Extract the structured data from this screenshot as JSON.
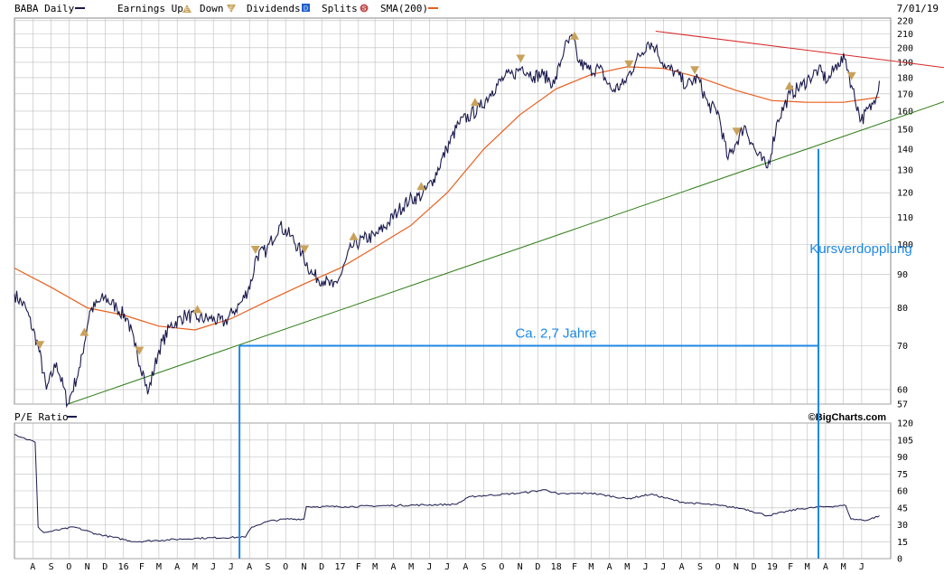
{
  "header": {
    "symbol_label": "BABA Daily",
    "earnings_up_label": "Earnings Up",
    "earnings_down_label": "Down",
    "dividends_label": "Dividends",
    "splits_label": "Splits",
    "sma_label": "SMA(200)",
    "date_label": "7/01/19",
    "icons": {
      "earnings_up": "E",
      "earnings_down": "E",
      "dividends": "D",
      "splits": "S"
    }
  },
  "pe_label": "P/E Ratio",
  "brand": "©BigCharts.com",
  "colors": {
    "price": "#1a1a4e",
    "sma": "#e85f1e",
    "resistance": "#d62728",
    "support": "#2e7d16",
    "annotation": "#1e88e5",
    "grid": "#bdbdbd",
    "earnings": "#c9a25a"
  },
  "chart_data": [
    {
      "type": "line",
      "title": "BABA Daily",
      "x_ticks": [
        "A",
        "S",
        "O",
        "N",
        "D",
        "16",
        "F",
        "M",
        "A",
        "M",
        "J",
        "J",
        "A",
        "S",
        "O",
        "N",
        "D",
        "17",
        "F",
        "M",
        "A",
        "M",
        "J",
        "J",
        "A",
        "S",
        "O",
        "N",
        "D",
        "18",
        "F",
        "M",
        "A",
        "M",
        "J",
        "J",
        "A",
        "S",
        "O",
        "N",
        "D",
        "19",
        "F",
        "M",
        "A",
        "M",
        "J"
      ],
      "y_scale": "log",
      "y_ticks": [
        57,
        60,
        70,
        80,
        90,
        100,
        110,
        120,
        130,
        140,
        150,
        160,
        170,
        180,
        190,
        200,
        210,
        220
      ],
      "ylim": [
        57,
        222
      ],
      "grid": true,
      "series": [
        {
          "name": "BABA Daily",
          "x": [
            "2015-07-01",
            "2015-07-20",
            "2015-08-10",
            "2015-08-24",
            "2015-09-10",
            "2015-09-29",
            "2015-10-20",
            "2015-11-05",
            "2015-11-30",
            "2015-12-21",
            "2016-01-08",
            "2016-01-20",
            "2016-02-05",
            "2016-02-11",
            "2016-03-01",
            "2016-03-20",
            "2016-04-15",
            "2016-05-06",
            "2016-05-27",
            "2016-06-20",
            "2016-07-05",
            "2016-07-20",
            "2016-08-05",
            "2016-08-12",
            "2016-08-30",
            "2016-09-20",
            "2016-10-10",
            "2016-10-28",
            "2016-11-15",
            "2016-12-05",
            "2016-12-20",
            "2017-01-03",
            "2017-01-20",
            "2017-02-10",
            "2017-03-01",
            "2017-03-24",
            "2017-04-10",
            "2017-04-28",
            "2017-05-20",
            "2017-06-08",
            "2017-06-30",
            "2017-07-20",
            "2017-08-10",
            "2017-08-25",
            "2017-09-15",
            "2017-10-05",
            "2017-10-20",
            "2017-11-05",
            "2017-11-24",
            "2017-12-10",
            "2017-12-29",
            "2018-01-15",
            "2018-01-29",
            "2018-02-08",
            "2018-02-26",
            "2018-03-15",
            "2018-04-05",
            "2018-04-25",
            "2018-05-15",
            "2018-06-05",
            "2018-06-18",
            "2018-07-05",
            "2018-07-20",
            "2018-08-10",
            "2018-08-28",
            "2018-09-15",
            "2018-10-01",
            "2018-10-18",
            "2018-10-30",
            "2018-11-15",
            "2018-12-05",
            "2018-12-24",
            "2019-01-10",
            "2019-01-31",
            "2019-02-20",
            "2019-03-05",
            "2019-03-20",
            "2019-04-05",
            "2019-04-22",
            "2019-05-05",
            "2019-05-15",
            "2019-05-31",
            "2019-06-20",
            "2019-07-01"
          ],
          "values": [
            84,
            80,
            70,
            60,
            66,
            57,
            65,
            79,
            83,
            80,
            77,
            70,
            63,
            59,
            69,
            75,
            78,
            77,
            77,
            76,
            79,
            82,
            88,
            96,
            98,
            107,
            103,
            97,
            90,
            88,
            86,
            90,
            99,
            102,
            103,
            108,
            113,
            117,
            119,
            126,
            140,
            153,
            158,
            162,
            172,
            180,
            182,
            187,
            181,
            182,
            176,
            200,
            207,
            190,
            185,
            186,
            172,
            176,
            190,
            204,
            200,
            186,
            184,
            175,
            180,
            163,
            160,
            135,
            142,
            152,
            138,
            131,
            155,
            170,
            175,
            180,
            185,
            178,
            190,
            192,
            175,
            155,
            164,
            178
          ]
        },
        {
          "name": "SMA(200)",
          "x": [
            "2015-07-01",
            "2015-09-01",
            "2015-11-01",
            "2016-01-01",
            "2016-03-01",
            "2016-05-01",
            "2016-07-01",
            "2016-09-01",
            "2016-11-01",
            "2017-01-01",
            "2017-03-01",
            "2017-05-01",
            "2017-07-01",
            "2017-09-01",
            "2017-11-01",
            "2018-01-01",
            "2018-03-01",
            "2018-05-01",
            "2018-07-01",
            "2018-09-01",
            "2018-11-01",
            "2019-01-01",
            "2019-03-01",
            "2019-05-01",
            "2019-07-01"
          ],
          "values": [
            92,
            86,
            80,
            78,
            75,
            74,
            77,
            82,
            87,
            92,
            99,
            107,
            120,
            140,
            158,
            173,
            182,
            187,
            186,
            180,
            172,
            166,
            165,
            165,
            168
          ]
        },
        {
          "name": "Trendline (resistance)",
          "x": [
            "2018-06-18",
            "2019-07-20"
          ],
          "values": [
            212,
            191
          ]
        },
        {
          "name": "Trendline (support)",
          "x": [
            "2015-09-29",
            "2019-07-20"
          ],
          "values": [
            57,
            155
          ]
        }
      ],
      "earnings_events": [
        {
          "date": "2015-08-13",
          "dir": "down"
        },
        {
          "date": "2015-10-27",
          "dir": "up"
        },
        {
          "date": "2016-01-28",
          "dir": "down"
        },
        {
          "date": "2016-05-05",
          "dir": "up"
        },
        {
          "date": "2016-08-11",
          "dir": "down"
        },
        {
          "date": "2016-11-02",
          "dir": "down"
        },
        {
          "date": "2017-01-24",
          "dir": "up"
        },
        {
          "date": "2017-05-18",
          "dir": "up"
        },
        {
          "date": "2017-08-17",
          "dir": "up"
        },
        {
          "date": "2017-11-02",
          "dir": "down"
        },
        {
          "date": "2018-02-01",
          "dir": "up"
        },
        {
          "date": "2018-05-04",
          "dir": "down"
        },
        {
          "date": "2018-08-23",
          "dir": "down"
        },
        {
          "date": "2018-11-02",
          "dir": "down"
        },
        {
          "date": "2019-01-30",
          "dir": "up"
        },
        {
          "date": "2019-05-15",
          "dir": "down"
        }
      ],
      "annotations": [
        {
          "text": "Ca. 2,7 Jahre",
          "from": "2016-07-15",
          "to": "2019-03-20",
          "level": 70
        },
        {
          "text": "Kursverdopplung",
          "date": "2019-03-20",
          "from_value": 70,
          "to_value": 140
        }
      ]
    },
    {
      "type": "line",
      "title": "P/E Ratio",
      "y_ticks": [
        0,
        15,
        30,
        45,
        60,
        75,
        90,
        105,
        120
      ],
      "ylim": [
        0,
        120
      ],
      "series": [
        {
          "name": "P/E Ratio",
          "x": [
            "2015-07-01",
            "2015-08-05",
            "2015-08-10",
            "2015-08-20",
            "2015-10-10",
            "2015-11-15",
            "2016-01-20",
            "2016-05-01",
            "2016-07-25",
            "2016-08-05",
            "2016-09-01",
            "2016-10-01",
            "2016-11-01",
            "2016-11-05",
            "2017-01-10",
            "2017-04-01",
            "2017-07-15",
            "2017-08-10",
            "2017-11-01",
            "2017-12-15",
            "2018-01-05",
            "2018-03-01",
            "2018-05-01",
            "2018-06-10",
            "2018-08-01",
            "2018-10-05",
            "2018-11-15",
            "2018-12-24",
            "2019-02-15",
            "2019-04-01",
            "2019-05-05",
            "2019-05-14",
            "2019-06-10",
            "2019-07-01"
          ],
          "values": [
            110,
            103,
            28,
            23,
            28,
            22,
            15,
            18,
            19,
            28,
            33,
            35,
            35,
            46,
            46,
            47,
            48,
            55,
            58,
            61,
            57,
            58,
            53,
            57,
            50,
            47,
            44,
            38,
            44,
            46,
            47,
            35,
            34,
            38
          ]
        }
      ]
    }
  ]
}
